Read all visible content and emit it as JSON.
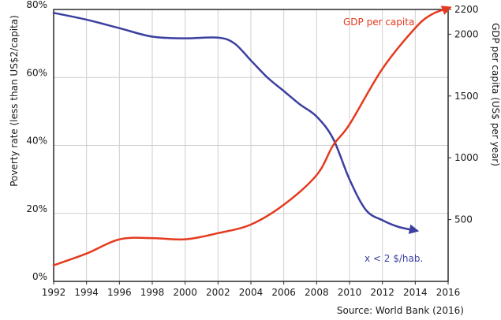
{
  "chart_data": {
    "type": "line",
    "title": "",
    "x_label": "",
    "y_left_label": "Poverty rate (less than US$2/capita)",
    "y_right_label": "GDP per capita (US$ per year)",
    "x_range": [
      1992,
      2016
    ],
    "y_left_range": [
      0,
      80
    ],
    "y_right_range": [
      0,
      2200
    ],
    "x_ticks": [
      "1992",
      "1994",
      "1996",
      "1998",
      "2000",
      "2002",
      "2004",
      "2006",
      "2008",
      "2010",
      "2012",
      "2014",
      "2016"
    ],
    "y_left_ticks": [
      {
        "value": 0,
        "label": "0%"
      },
      {
        "value": 20,
        "label": "20%"
      },
      {
        "value": 40,
        "label": "40%"
      },
      {
        "value": 60,
        "label": "60%"
      },
      {
        "value": 80,
        "label": "80%"
      }
    ],
    "y_right_ticks": [
      {
        "value": 500,
        "label": "500"
      },
      {
        "value": 1000,
        "label": "1000"
      },
      {
        "value": 1500,
        "label": "1500"
      },
      {
        "value": 2000,
        "label": "2000"
      },
      {
        "value": 2200,
        "label": "2200"
      }
    ],
    "grid": true,
    "series": [
      {
        "name": "x < 2 $/hab.",
        "axis": "left",
        "color": "#3b3fa0",
        "arrow": true,
        "x": [
          1992,
          1994,
          1996,
          1998,
          2000,
          2002,
          2003,
          2004,
          2005,
          2006,
          2007,
          2008,
          2009,
          2010,
          2011,
          2012,
          2013,
          2014
        ],
        "y": [
          79,
          77,
          74.5,
          72,
          71.5,
          71.7,
          70,
          65,
          60,
          56,
          52,
          48.5,
          42,
          30,
          21,
          18,
          16,
          15
        ]
      },
      {
        "name": "GDP per capita",
        "axis": "right",
        "color": "#e53a1e",
        "arrow": true,
        "x": [
          1992,
          1994,
          1996,
          1998,
          2000,
          2002,
          2004,
          2006,
          2008,
          2009,
          2010,
          2012,
          2014,
          2015,
          2016
        ],
        "y": [
          130,
          225,
          340,
          350,
          340,
          390,
          460,
          620,
          860,
          1100,
          1270,
          1720,
          2050,
          2160,
          2210
        ]
      }
    ],
    "annotations": {
      "source": "Source: World Bank (2016)"
    }
  }
}
